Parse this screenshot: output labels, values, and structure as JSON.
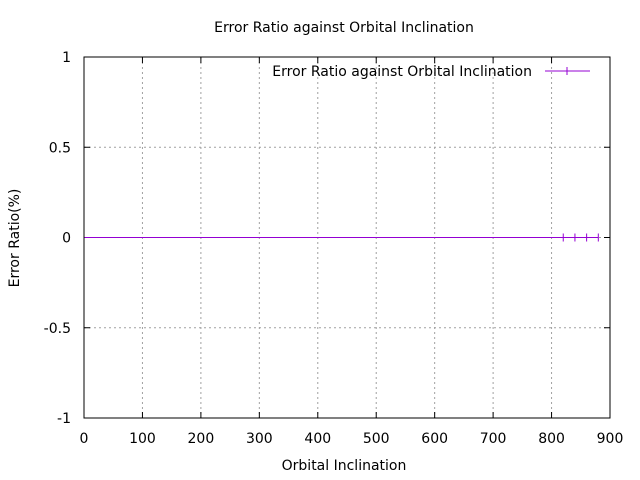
{
  "chart_data": {
    "type": "line",
    "title": "Error Ratio against Orbital Inclination",
    "xlabel": "Orbital Inclination",
    "ylabel": "Error Ratio(%)",
    "xlim": [
      0,
      900
    ],
    "ylim": [
      -1,
      1
    ],
    "xticks": [
      0,
      100,
      200,
      300,
      400,
      500,
      600,
      700,
      800,
      900
    ],
    "yticks": [
      -1,
      -0.5,
      0,
      0.5,
      1
    ],
    "xtick_labels": [
      "0",
      "100",
      "200",
      "300",
      "400",
      "500",
      "600",
      "700",
      "800",
      "900"
    ],
    "ytick_labels": [
      "-1",
      "-0.5",
      "0",
      "0.5",
      "1"
    ],
    "grid": true,
    "legend": "top-right",
    "series": [
      {
        "name": "Error Ratio against Orbital Inclination",
        "color": "#9400d3",
        "marker": "plus",
        "x": [
          0,
          820,
          840,
          860,
          880
        ],
        "y": [
          0,
          0,
          0,
          0,
          0
        ]
      }
    ]
  }
}
